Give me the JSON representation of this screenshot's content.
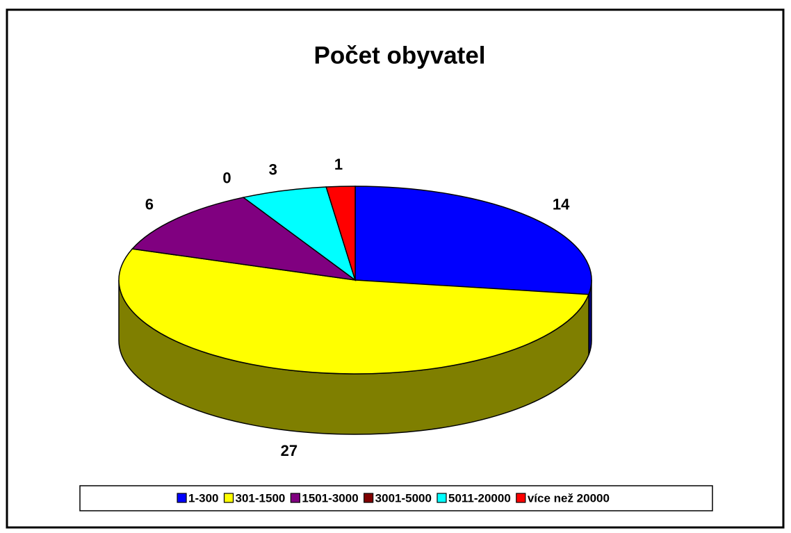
{
  "chart_data": {
    "type": "pie",
    "title": "Počet obyvatel",
    "categories": [
      "1-300",
      "301-1500",
      "1501-3000",
      "3001-5000",
      "5011-20000",
      "více než 20000"
    ],
    "values": [
      14,
      27,
      6,
      0,
      3,
      1
    ],
    "colors": [
      "#0000ff",
      "#ffff00",
      "#800080",
      "#800000",
      "#00ffff",
      "#ff0000"
    ],
    "legend": "bottom"
  }
}
